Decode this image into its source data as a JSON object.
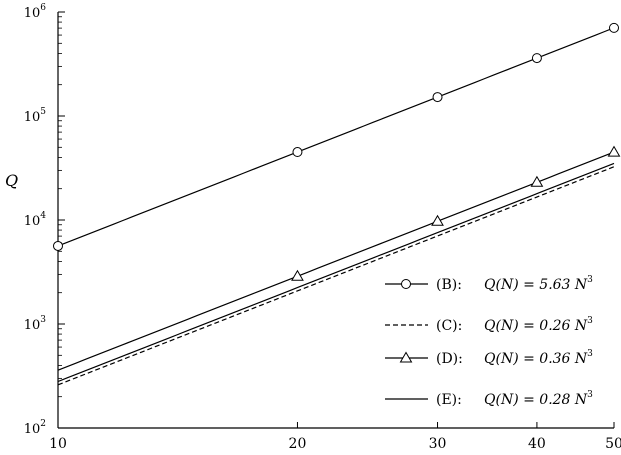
{
  "chart_data": {
    "type": "line",
    "xscale": "log",
    "yscale": "log",
    "xlim": [
      10,
      50
    ],
    "ylim": [
      100,
      1000000
    ],
    "ylabel": "Q",
    "xlabel": "",
    "x_ticks": [
      {
        "value": 10,
        "label": "10"
      },
      {
        "value": 20,
        "label": "20"
      },
      {
        "value": 30,
        "label": "30"
      },
      {
        "value": 40,
        "label": "40"
      },
      {
        "value": 50,
        "label": "50"
      }
    ],
    "y_ticks": [
      {
        "value": 100,
        "base": "10",
        "exp": "2"
      },
      {
        "value": 1000,
        "base": "10",
        "exp": "3"
      },
      {
        "value": 10000,
        "base": "10",
        "exp": "4"
      },
      {
        "value": 100000,
        "base": "10",
        "exp": "5"
      },
      {
        "value": 1000000,
        "base": "10",
        "exp": "6"
      }
    ],
    "legend_position": "bottom-right",
    "series": [
      {
        "key": "B",
        "label": "(B):",
        "formula": "Q(N) = 5.63 N",
        "exp": "3",
        "coef": 5.63,
        "line": "solid",
        "marker": "circle",
        "points": [
          10,
          20,
          30,
          40,
          50
        ]
      },
      {
        "key": "C",
        "label": "(C):",
        "formula": "Q(N) = 0.26 N",
        "exp": "3",
        "coef": 0.26,
        "line": "dashed",
        "marker": "none",
        "points": []
      },
      {
        "key": "D",
        "label": "(D):",
        "formula": "Q(N) = 0.36 N",
        "exp": "3",
        "coef": 0.36,
        "line": "solid",
        "marker": "triangle",
        "points": [
          20,
          30,
          40,
          50
        ]
      },
      {
        "key": "E",
        "label": "(E):",
        "formula": "Q(N) = 0.28 N",
        "exp": "3",
        "coef": 0.28,
        "line": "solid",
        "marker": "none",
        "points": []
      }
    ]
  }
}
